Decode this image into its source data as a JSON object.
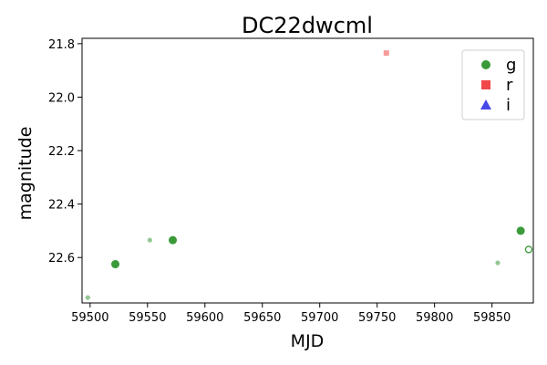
{
  "chart_data": {
    "type": "scatter",
    "title": "DC22dwcml",
    "xlabel": "MJD",
    "ylabel": "magnitude",
    "xlim": [
      59493,
      59886
    ],
    "ylim": [
      22.77,
      21.78
    ],
    "y_inverted": true,
    "xticks": [
      59500,
      59550,
      59600,
      59650,
      59700,
      59750,
      59800,
      59850
    ],
    "yticks": [
      21.8,
      22.0,
      22.2,
      22.4,
      22.6
    ],
    "grid": false,
    "legend": {
      "placement": "top-right",
      "entries": [
        {
          "label": "g",
          "marker": "circle",
          "color": "#3a9a3a"
        },
        {
          "label": "r",
          "marker": "square",
          "color": "#f04848"
        },
        {
          "label": "i",
          "marker": "triangle",
          "color": "#4848e8"
        }
      ]
    },
    "series": [
      {
        "name": "g",
        "marker": "circle",
        "color": "#3a9a3a",
        "points": [
          {
            "x": 59498,
            "y": 22.75,
            "style": "faint-small"
          },
          {
            "x": 59522,
            "y": 22.625,
            "style": "solid"
          },
          {
            "x": 59552,
            "y": 22.535,
            "style": "faint-small"
          },
          {
            "x": 59572,
            "y": 22.535,
            "style": "solid"
          },
          {
            "x": 59855,
            "y": 22.62,
            "style": "faint-small"
          },
          {
            "x": 59875,
            "y": 22.5,
            "style": "solid"
          },
          {
            "x": 59882,
            "y": 22.57,
            "style": "open"
          }
        ]
      },
      {
        "name": "r",
        "marker": "square",
        "color": "#f04848",
        "points": [
          {
            "x": 59758,
            "y": 21.835,
            "style": "faint-small"
          }
        ]
      },
      {
        "name": "i",
        "marker": "triangle",
        "color": "#4848e8",
        "points": []
      }
    ]
  }
}
